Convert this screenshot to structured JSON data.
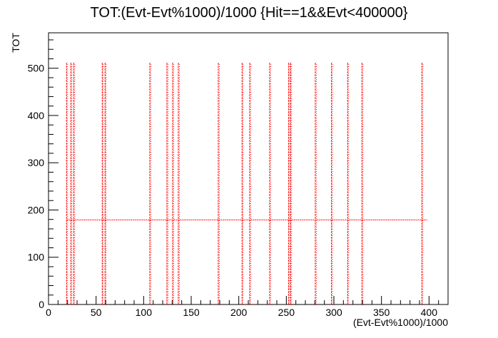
{
  "chart_data": {
    "type": "scatter",
    "title": "TOT:(Evt-Evt%1000)/1000 {Hit==1&&Evt<400000}",
    "xlabel": "(Evt-Evt%1000)/1000",
    "ylabel": "TOT",
    "xlim": [
      0,
      420
    ],
    "ylim": [
      0,
      575
    ],
    "x_ticks": [
      0,
      50,
      100,
      150,
      200,
      250,
      300,
      350,
      400
    ],
    "y_ticks": [
      0,
      100,
      200,
      300,
      400,
      500
    ],
    "marker_color": "#ff0000",
    "grid": false,
    "vertical_bands": [
      {
        "x": 19.5,
        "y_min": 0,
        "y_max": 512
      },
      {
        "x": 24,
        "y_min": 0,
        "y_max": 512
      },
      {
        "x": 27,
        "y_min": 0,
        "y_max": 512
      },
      {
        "x": 57,
        "y_min": 0,
        "y_max": 512
      },
      {
        "x": 60,
        "y_min": 0,
        "y_max": 512
      },
      {
        "x": 107,
        "y_min": 0,
        "y_max": 512
      },
      {
        "x": 125,
        "y_min": 0,
        "y_max": 512
      },
      {
        "x": 131,
        "y_min": 0,
        "y_max": 512
      },
      {
        "x": 137,
        "y_min": 0,
        "y_max": 512
      },
      {
        "x": 179,
        "y_min": 0,
        "y_max": 512
      },
      {
        "x": 204,
        "y_min": 0,
        "y_max": 512
      },
      {
        "x": 212,
        "y_min": 0,
        "y_max": 512
      },
      {
        "x": 233,
        "y_min": 0,
        "y_max": 512
      },
      {
        "x": 253,
        "y_min": 0,
        "y_max": 512
      },
      {
        "x": 255,
        "y_min": 0,
        "y_max": 512
      },
      {
        "x": 281,
        "y_min": 0,
        "y_max": 512
      },
      {
        "x": 298,
        "y_min": 0,
        "y_max": 512
      },
      {
        "x": 315,
        "y_min": 0,
        "y_max": 512
      },
      {
        "x": 330,
        "y_min": 0,
        "y_max": 512
      },
      {
        "x": 393,
        "y_min": 0,
        "y_max": 512
      }
    ],
    "horizontal_band": {
      "y": 179,
      "x_min": 19,
      "x_max": 398
    }
  }
}
